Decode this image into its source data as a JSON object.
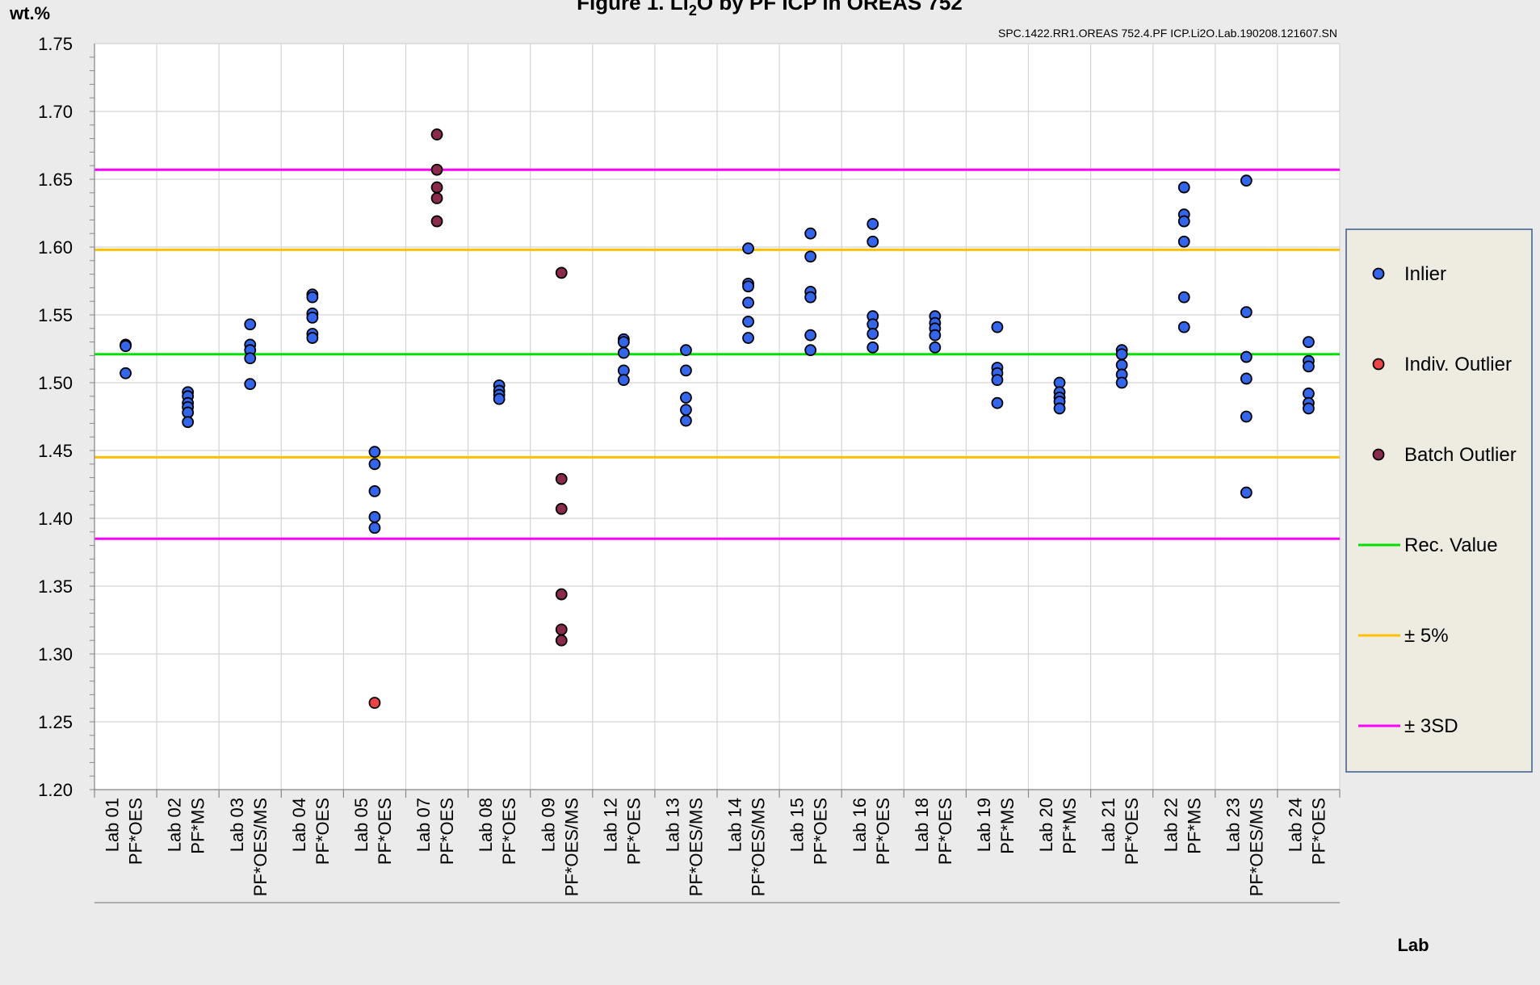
{
  "chart_data": {
    "type": "scatter",
    "title": "Figure 1. Li",
    "title_sub": "2",
    "title_rest": "O by PF ICP in OREAS 752",
    "ylabel": "wt.%",
    "xlabel": "Lab",
    "code": "SPC.1422.RR1.OREAS 752.4.PF ICP.Li2O.Lab.190208.121607.SN",
    "ylim": [
      1.2,
      1.75
    ],
    "yticks": [
      "1.20",
      "1.25",
      "1.30",
      "1.35",
      "1.40",
      "1.45",
      "1.50",
      "1.55",
      "1.60",
      "1.65",
      "1.70",
      "1.75"
    ],
    "grid": true,
    "legend_position": "right",
    "categories": [
      {
        "lab": "Lab 01",
        "method": "PF*OES"
      },
      {
        "lab": "Lab 02",
        "method": "PF*MS"
      },
      {
        "lab": "Lab 03",
        "method": "PF*OES/MS"
      },
      {
        "lab": "Lab 04",
        "method": "PF*OES"
      },
      {
        "lab": "Lab 05",
        "method": "PF*OES"
      },
      {
        "lab": "Lab 07",
        "method": "PF*OES"
      },
      {
        "lab": "Lab 08",
        "method": "PF*OES"
      },
      {
        "lab": "Lab 09",
        "method": "PF*OES/MS"
      },
      {
        "lab": "Lab 12",
        "method": "PF*OES"
      },
      {
        "lab": "Lab 13",
        "method": "PF*OES/MS"
      },
      {
        "lab": "Lab 14",
        "method": "PF*OES/MS"
      },
      {
        "lab": "Lab 15",
        "method": "PF*OES"
      },
      {
        "lab": "Lab 16",
        "method": "PF*OES"
      },
      {
        "lab": "Lab 18",
        "method": "PF*OES"
      },
      {
        "lab": "Lab 19",
        "method": "PF*MS"
      },
      {
        "lab": "Lab 20",
        "method": "PF*MS"
      },
      {
        "lab": "Lab 21",
        "method": "PF*OES"
      },
      {
        "lab": "Lab 22",
        "method": "PF*MS"
      },
      {
        "lab": "Lab 23",
        "method": "PF*OES/MS"
      },
      {
        "lab": "Lab 24",
        "method": "PF*OES"
      }
    ],
    "points": [
      [
        {
          "v": 1.528,
          "t": "inlier"
        },
        {
          "v": 1.527,
          "t": "inlier"
        },
        {
          "v": 1.507,
          "t": "inlier"
        }
      ],
      [
        {
          "v": 1.493,
          "t": "inlier"
        },
        {
          "v": 1.49,
          "t": "inlier"
        },
        {
          "v": 1.485,
          "t": "inlier"
        },
        {
          "v": 1.482,
          "t": "inlier"
        },
        {
          "v": 1.478,
          "t": "inlier"
        },
        {
          "v": 1.471,
          "t": "inlier"
        }
      ],
      [
        {
          "v": 1.543,
          "t": "inlier"
        },
        {
          "v": 1.528,
          "t": "inlier"
        },
        {
          "v": 1.524,
          "t": "inlier"
        },
        {
          "v": 1.518,
          "t": "inlier"
        },
        {
          "v": 1.499,
          "t": "inlier"
        }
      ],
      [
        {
          "v": 1.565,
          "t": "inlier"
        },
        {
          "v": 1.563,
          "t": "inlier"
        },
        {
          "v": 1.551,
          "t": "inlier"
        },
        {
          "v": 1.548,
          "t": "inlier"
        },
        {
          "v": 1.536,
          "t": "inlier"
        },
        {
          "v": 1.533,
          "t": "inlier"
        }
      ],
      [
        {
          "v": 1.449,
          "t": "inlier"
        },
        {
          "v": 1.44,
          "t": "inlier"
        },
        {
          "v": 1.42,
          "t": "inlier"
        },
        {
          "v": 1.401,
          "t": "inlier"
        },
        {
          "v": 1.393,
          "t": "inlier"
        },
        {
          "v": 1.264,
          "t": "indiv"
        }
      ],
      [
        {
          "v": 1.683,
          "t": "batch"
        },
        {
          "v": 1.657,
          "t": "batch"
        },
        {
          "v": 1.644,
          "t": "batch"
        },
        {
          "v": 1.636,
          "t": "batch"
        },
        {
          "v": 1.619,
          "t": "batch"
        }
      ],
      [
        {
          "v": 1.498,
          "t": "inlier"
        },
        {
          "v": 1.494,
          "t": "inlier"
        },
        {
          "v": 1.491,
          "t": "inlier"
        },
        {
          "v": 1.488,
          "t": "inlier"
        }
      ],
      [
        {
          "v": 1.581,
          "t": "batch"
        },
        {
          "v": 1.429,
          "t": "batch"
        },
        {
          "v": 1.407,
          "t": "batch"
        },
        {
          "v": 1.344,
          "t": "batch"
        },
        {
          "v": 1.318,
          "t": "batch"
        },
        {
          "v": 1.31,
          "t": "batch"
        }
      ],
      [
        {
          "v": 1.532,
          "t": "inlier"
        },
        {
          "v": 1.53,
          "t": "inlier"
        },
        {
          "v": 1.522,
          "t": "inlier"
        },
        {
          "v": 1.509,
          "t": "inlier"
        },
        {
          "v": 1.502,
          "t": "inlier"
        }
      ],
      [
        {
          "v": 1.524,
          "t": "inlier"
        },
        {
          "v": 1.509,
          "t": "inlier"
        },
        {
          "v": 1.489,
          "t": "inlier"
        },
        {
          "v": 1.48,
          "t": "inlier"
        },
        {
          "v": 1.472,
          "t": "inlier"
        }
      ],
      [
        {
          "v": 1.599,
          "t": "inlier"
        },
        {
          "v": 1.573,
          "t": "inlier"
        },
        {
          "v": 1.571,
          "t": "inlier"
        },
        {
          "v": 1.559,
          "t": "inlier"
        },
        {
          "v": 1.545,
          "t": "inlier"
        },
        {
          "v": 1.533,
          "t": "inlier"
        }
      ],
      [
        {
          "v": 1.61,
          "t": "inlier"
        },
        {
          "v": 1.593,
          "t": "inlier"
        },
        {
          "v": 1.567,
          "t": "inlier"
        },
        {
          "v": 1.563,
          "t": "inlier"
        },
        {
          "v": 1.535,
          "t": "inlier"
        },
        {
          "v": 1.524,
          "t": "inlier"
        }
      ],
      [
        {
          "v": 1.617,
          "t": "inlier"
        },
        {
          "v": 1.604,
          "t": "inlier"
        },
        {
          "v": 1.549,
          "t": "inlier"
        },
        {
          "v": 1.543,
          "t": "inlier"
        },
        {
          "v": 1.536,
          "t": "inlier"
        },
        {
          "v": 1.526,
          "t": "inlier"
        }
      ],
      [
        {
          "v": 1.549,
          "t": "inlier"
        },
        {
          "v": 1.544,
          "t": "inlier"
        },
        {
          "v": 1.54,
          "t": "inlier"
        },
        {
          "v": 1.535,
          "t": "inlier"
        },
        {
          "v": 1.526,
          "t": "inlier"
        }
      ],
      [
        {
          "v": 1.541,
          "t": "inlier"
        },
        {
          "v": 1.511,
          "t": "inlier"
        },
        {
          "v": 1.507,
          "t": "inlier"
        },
        {
          "v": 1.502,
          "t": "inlier"
        },
        {
          "v": 1.485,
          "t": "inlier"
        }
      ],
      [
        {
          "v": 1.5,
          "t": "inlier"
        },
        {
          "v": 1.493,
          "t": "inlier"
        },
        {
          "v": 1.489,
          "t": "inlier"
        },
        {
          "v": 1.486,
          "t": "inlier"
        },
        {
          "v": 1.481,
          "t": "inlier"
        }
      ],
      [
        {
          "v": 1.524,
          "t": "inlier"
        },
        {
          "v": 1.521,
          "t": "inlier"
        },
        {
          "v": 1.513,
          "t": "inlier"
        },
        {
          "v": 1.506,
          "t": "inlier"
        },
        {
          "v": 1.5,
          "t": "inlier"
        }
      ],
      [
        {
          "v": 1.644,
          "t": "inlier"
        },
        {
          "v": 1.624,
          "t": "inlier"
        },
        {
          "v": 1.619,
          "t": "inlier"
        },
        {
          "v": 1.604,
          "t": "inlier"
        },
        {
          "v": 1.563,
          "t": "inlier"
        },
        {
          "v": 1.541,
          "t": "inlier"
        }
      ],
      [
        {
          "v": 1.649,
          "t": "inlier"
        },
        {
          "v": 1.552,
          "t": "inlier"
        },
        {
          "v": 1.519,
          "t": "inlier"
        },
        {
          "v": 1.503,
          "t": "inlier"
        },
        {
          "v": 1.475,
          "t": "inlier"
        },
        {
          "v": 1.419,
          "t": "inlier"
        }
      ],
      [
        {
          "v": 1.53,
          "t": "inlier"
        },
        {
          "v": 1.516,
          "t": "inlier"
        },
        {
          "v": 1.512,
          "t": "inlier"
        },
        {
          "v": 1.492,
          "t": "inlier"
        },
        {
          "v": 1.485,
          "t": "inlier"
        },
        {
          "v": 1.481,
          "t": "inlier"
        }
      ]
    ],
    "reference_lines": [
      {
        "key": "plus3sd",
        "value": 1.657,
        "color": "#ff00ff"
      },
      {
        "key": "plus5",
        "value": 1.598,
        "color": "#ffc000"
      },
      {
        "key": "rec",
        "value": 1.521,
        "color": "#00e000"
      },
      {
        "key": "minus5",
        "value": 1.445,
        "color": "#ffc000"
      },
      {
        "key": "minus3sd",
        "value": 1.385,
        "color": "#ff00ff"
      }
    ],
    "legend": [
      {
        "label": "Inlier",
        "kind": "marker",
        "color": "#3366ee"
      },
      {
        "label": "Indiv. Outlier",
        "kind": "marker",
        "color": "#ee4444"
      },
      {
        "label": "Batch Outlier",
        "kind": "marker",
        "color": "#8b2a4a"
      },
      {
        "label": "Rec. Value",
        "kind": "line",
        "color": "#00e000"
      },
      {
        "label": "± 5%",
        "kind": "line",
        "color": "#ffc000"
      },
      {
        "label": "± 3SD",
        "kind": "line",
        "color": "#ff00ff"
      }
    ],
    "colors": {
      "inlier": "#3366ee",
      "indiv": "#ee4444",
      "batch": "#8b2a4a",
      "grid": "#d4d4d4",
      "plot_bg": "#ffffff",
      "legend_bg": "#eeece1",
      "legend_border": "#3b5b8c"
    }
  }
}
